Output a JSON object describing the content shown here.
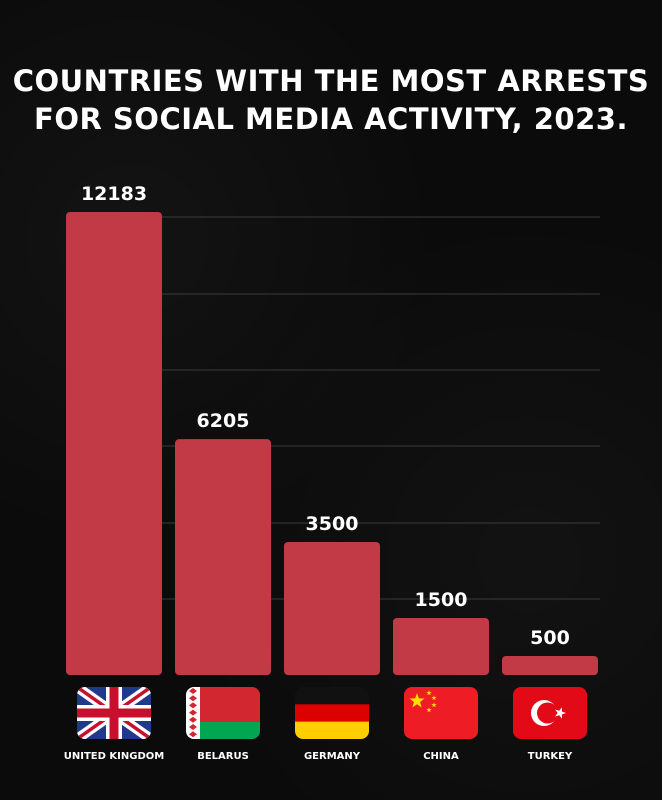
{
  "title_line1": "COUNTRIES WITH THE MOST ARRESTS",
  "title_line2": "FOR SOCIAL MEDIA ACTIVITY, 2023.",
  "colors": {
    "background": "#0b0b0b",
    "bar": "#c23a45",
    "text": "#ffffff",
    "grid": "#3a3a3a"
  },
  "chart_data": {
    "type": "bar",
    "title": "COUNTRIES WITH THE MOST ARRESTS FOR SOCIAL MEDIA ACTIVITY, 2023.",
    "categories": [
      "UNITED KINGDOM",
      "BELARUS",
      "GERMANY",
      "CHINA",
      "TURKEY"
    ],
    "values": [
      12183,
      6205,
      3500,
      1500,
      500
    ],
    "flags": [
      "united-kingdom-flag",
      "belarus-flag",
      "germany-flag",
      "china-flag",
      "turkey-flag"
    ],
    "xlabel": "",
    "ylabel": "",
    "ylim": [
      0,
      12183
    ],
    "grid": true,
    "legend": "none"
  }
}
